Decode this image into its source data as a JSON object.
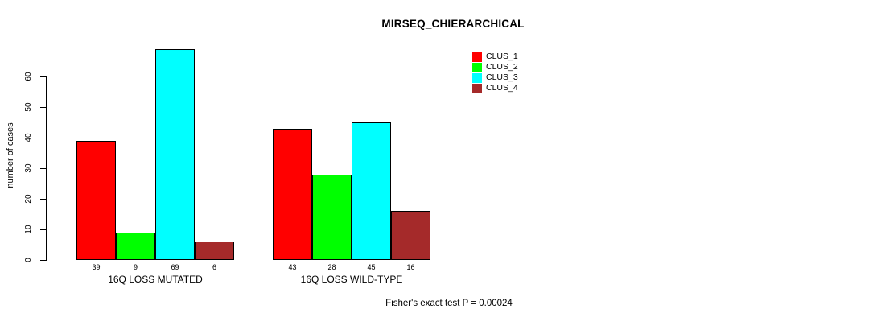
{
  "title": "MIRSEQ_CHIERARCHICAL",
  "footer": "Fisher's exact test P = 0.00024",
  "chart_data": {
    "type": "bar",
    "title": "MIRSEQ_CHIERARCHICAL",
    "xlabel": "",
    "ylabel": "number of cases",
    "categories": [
      "16Q LOSS MUTATED",
      "16Q LOSS WILD-TYPE"
    ],
    "series": [
      {
        "name": "CLUS_1",
        "color": "#FF0000",
        "values": [
          39,
          43
        ]
      },
      {
        "name": "CLUS_2",
        "color": "#00FF00",
        "values": [
          9,
          28
        ]
      },
      {
        "name": "CLUS_3",
        "color": "#00FFFF",
        "values": [
          69,
          45
        ]
      },
      {
        "name": "CLUS_4",
        "color": "#A52A2A",
        "values": [
          6,
          16
        ]
      }
    ],
    "bar_value_labels": [
      [
        39,
        9,
        69,
        6
      ],
      [
        43,
        28,
        45,
        16
      ]
    ],
    "yticks": [
      0,
      10,
      20,
      30,
      40,
      50,
      60
    ],
    "ylim": [
      0,
      69
    ],
    "grid": false,
    "legend_position": "top-right",
    "legend_entries": [
      "CLUS_1",
      "CLUS_2",
      "CLUS_3",
      "CLUS_4"
    ],
    "annotation": "Fisher's exact test P = 0.00024"
  }
}
